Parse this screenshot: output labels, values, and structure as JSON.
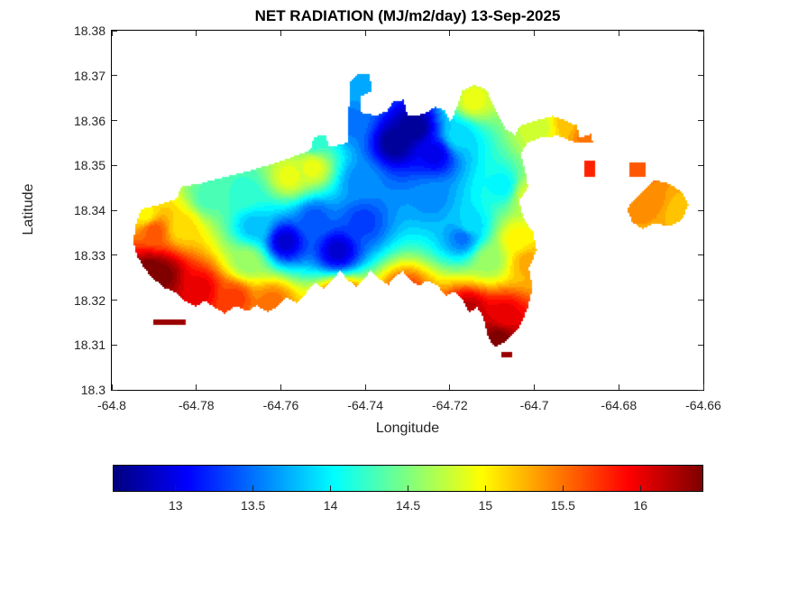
{
  "chart_data": {
    "type": "heatmap",
    "title": "NET RADIATION (MJ/m2/day) 13-Sep-2025",
    "date": "13-Sep-2025",
    "units": "MJ/m2/day",
    "xlabel": "Longitude",
    "ylabel": "Latitude",
    "xlim": [
      -64.8,
      -64.66
    ],
    "ylim": [
      18.3,
      18.38
    ],
    "x_tick_values": [
      -64.8,
      -64.78,
      -64.76,
      -64.74,
      -64.72,
      -64.7,
      -64.68,
      -64.66
    ],
    "x_tick_labels": [
      "-64.8",
      "-64.78",
      "-64.76",
      "-64.74",
      "-64.72",
      "-64.7",
      "-64.68",
      "-64.66"
    ],
    "y_tick_values": [
      18.3,
      18.31,
      18.32,
      18.33,
      18.34,
      18.35,
      18.36,
      18.37,
      18.38
    ],
    "y_tick_labels": [
      "18.3",
      "18.31",
      "18.32",
      "18.33",
      "18.34",
      "18.35",
      "18.36",
      "18.37",
      "18.38"
    ],
    "grid": false,
    "colorbar": {
      "orientation": "horizontal",
      "colormap": "jet",
      "vmin": 12.6,
      "vmax": 16.4,
      "tick_values": [
        13,
        13.5,
        14,
        14.5,
        15,
        15.5,
        16
      ],
      "tick_labels": [
        "13",
        "13.5",
        "14",
        "14.5",
        "15",
        "15.5",
        "16"
      ]
    },
    "levels_step": 0.1,
    "regions": [
      [
        [
          -64.7943,
          18.3366
        ],
        [
          -64.7932,
          18.3402
        ],
        [
          -64.7883,
          18.3414
        ],
        [
          -64.7845,
          18.3426
        ],
        [
          -64.7836,
          18.3452
        ],
        [
          -64.7789,
          18.346
        ],
        [
          -64.7734,
          18.3474
        ],
        [
          -64.7666,
          18.349
        ],
        [
          -64.7591,
          18.3512
        ],
        [
          -64.753,
          18.3534
        ],
        [
          -64.7521,
          18.3564
        ],
        [
          -64.7491,
          18.3568
        ],
        [
          -64.7489,
          18.354
        ],
        [
          -64.7443,
          18.355
        ],
        [
          -64.7436,
          18.3686
        ],
        [
          -64.7419,
          18.3702
        ],
        [
          -64.7389,
          18.3702
        ],
        [
          -64.7385,
          18.3666
        ],
        [
          -64.7411,
          18.3654
        ],
        [
          -64.7409,
          18.3618
        ],
        [
          -64.7374,
          18.361
        ],
        [
          -64.7347,
          18.3622
        ],
        [
          -64.7334,
          18.3642
        ],
        [
          -64.7309,
          18.3646
        ],
        [
          -64.73,
          18.361
        ],
        [
          -64.7262,
          18.3614
        ],
        [
          -64.7236,
          18.363
        ],
        [
          -64.7211,
          18.3622
        ],
        [
          -64.7198,
          18.3596
        ],
        [
          -64.7183,
          18.363
        ],
        [
          -64.717,
          18.3666
        ],
        [
          -64.7143,
          18.368
        ],
        [
          -64.7113,
          18.3668
        ],
        [
          -64.71,
          18.364
        ],
        [
          -64.7083,
          18.361
        ],
        [
          -64.7068,
          18.358
        ],
        [
          -64.7045,
          18.3568
        ],
        [
          -64.7034,
          18.3588
        ],
        [
          -64.6998,
          18.36
        ],
        [
          -64.6955,
          18.361
        ],
        [
          -64.6926,
          18.36
        ],
        [
          -64.6898,
          18.3588
        ],
        [
          -64.6894,
          18.3562
        ],
        [
          -64.6864,
          18.357
        ],
        [
          -64.6862,
          18.355
        ],
        [
          -64.69,
          18.355
        ],
        [
          -64.6943,
          18.3566
        ],
        [
          -64.6985,
          18.3562
        ],
        [
          -64.7017,
          18.355
        ],
        [
          -64.7032,
          18.3526
        ],
        [
          -64.7021,
          18.3486
        ],
        [
          -64.7015,
          18.345
        ],
        [
          -64.7036,
          18.3422
        ],
        [
          -64.7026,
          18.3382
        ],
        [
          -64.7002,
          18.335
        ],
        [
          -64.6994,
          18.331
        ],
        [
          -64.7013,
          18.3272
        ],
        [
          -64.7004,
          18.323
        ],
        [
          -64.7015,
          18.3182
        ],
        [
          -64.7036,
          18.314
        ],
        [
          -64.7066,
          18.3108
        ],
        [
          -64.7094,
          18.3094
        ],
        [
          -64.7111,
          18.3122
        ],
        [
          -64.7121,
          18.3162
        ],
        [
          -64.7136,
          18.3184
        ],
        [
          -64.7155,
          18.3172
        ],
        [
          -64.7172,
          18.3204
        ],
        [
          -64.7189,
          18.322
        ],
        [
          -64.721,
          18.3208
        ],
        [
          -64.7228,
          18.3232
        ],
        [
          -64.7253,
          18.3244
        ],
        [
          -64.7274,
          18.323
        ],
        [
          -64.7296,
          18.3248
        ],
        [
          -64.7311,
          18.3264
        ],
        [
          -64.733,
          18.3252
        ],
        [
          -64.7345,
          18.3234
        ],
        [
          -64.7368,
          18.3248
        ],
        [
          -64.7387,
          18.3266
        ],
        [
          -64.7404,
          18.3244
        ],
        [
          -64.7423,
          18.323
        ],
        [
          -64.7445,
          18.3248
        ],
        [
          -64.746,
          18.3266
        ],
        [
          -64.7477,
          18.3244
        ],
        [
          -64.7498,
          18.3226
        ],
        [
          -64.7519,
          18.3238
        ],
        [
          -64.754,
          18.3216
        ],
        [
          -64.7562,
          18.3194
        ],
        [
          -64.7587,
          18.3206
        ],
        [
          -64.761,
          18.3184
        ],
        [
          -64.7632,
          18.3174
        ],
        [
          -64.7657,
          18.3188
        ],
        [
          -64.768,
          18.3174
        ],
        [
          -64.7706,
          18.3188
        ],
        [
          -64.7732,
          18.317
        ],
        [
          -64.7757,
          18.3184
        ],
        [
          -64.7779,
          18.3198
        ],
        [
          -64.7802,
          18.3186
        ],
        [
          -64.7828,
          18.3198
        ],
        [
          -64.7851,
          18.3218
        ],
        [
          -64.7877,
          18.3228
        ],
        [
          -64.7902,
          18.3248
        ],
        [
          -64.7923,
          18.327
        ],
        [
          -64.794,
          18.3298
        ],
        [
          -64.7949,
          18.333
        ]
      ],
      [
        [
          -64.6883,
          18.351
        ],
        [
          -64.6857,
          18.351
        ],
        [
          -64.6857,
          18.3474
        ],
        [
          -64.6883,
          18.3474
        ]
      ],
      [
        [
          -64.6777,
          18.3506
        ],
        [
          -64.6738,
          18.3506
        ],
        [
          -64.6738,
          18.3474
        ],
        [
          -64.6777,
          18.3474
        ]
      ],
      [
        [
          -64.6772,
          18.3416
        ],
        [
          -64.6747,
          18.344
        ],
        [
          -64.6713,
          18.3468
        ],
        [
          -64.6679,
          18.3458
        ],
        [
          -64.6649,
          18.344
        ],
        [
          -64.6636,
          18.3412
        ],
        [
          -64.6649,
          18.338
        ],
        [
          -64.6679,
          18.3364
        ],
        [
          -64.6715,
          18.3372
        ],
        [
          -64.6743,
          18.3358
        ],
        [
          -64.6768,
          18.3374
        ],
        [
          -64.6781,
          18.3402
        ]
      ],
      [
        [
          -64.79,
          18.3158
        ],
        [
          -64.7826,
          18.3158
        ],
        [
          -64.7826,
          18.3146
        ],
        [
          -64.79,
          18.3146
        ]
      ],
      [
        [
          -64.708,
          18.3084
        ],
        [
          -64.7053,
          18.3084
        ],
        [
          -64.7053,
          18.3074
        ],
        [
          -64.708,
          18.3074
        ]
      ]
    ],
    "samples": [
      [
        -64.791,
        18.326,
        16.5
      ],
      [
        -64.788,
        18.3255,
        16.4
      ],
      [
        -64.786,
        18.315,
        16.3
      ],
      [
        -64.779,
        18.3225,
        16.0
      ],
      [
        -64.771,
        18.3205,
        15.7
      ],
      [
        -64.762,
        18.3195,
        15.5
      ],
      [
        -64.7835,
        18.336,
        15.1
      ],
      [
        -64.79,
        18.3355,
        15.6
      ],
      [
        -64.792,
        18.339,
        15.0
      ],
      [
        -64.777,
        18.343,
        14.3
      ],
      [
        -64.768,
        18.3285,
        14.6
      ],
      [
        -64.758,
        18.3475,
        14.9
      ],
      [
        -64.7525,
        18.3495,
        14.9
      ],
      [
        -64.7685,
        18.3435,
        14.2
      ],
      [
        -64.7665,
        18.3365,
        13.8
      ],
      [
        -64.759,
        18.333,
        12.9
      ],
      [
        -64.7465,
        18.331,
        12.9
      ],
      [
        -64.752,
        18.338,
        13.4
      ],
      [
        -64.7405,
        18.3375,
        13.3
      ],
      [
        -64.733,
        18.355,
        12.65
      ],
      [
        -64.7285,
        18.3585,
        12.65
      ],
      [
        -64.7235,
        18.3525,
        13.0
      ],
      [
        -64.741,
        18.3465,
        13.6
      ],
      [
        -64.724,
        18.3425,
        13.6
      ],
      [
        -64.7155,
        18.3365,
        13.9
      ],
      [
        -64.717,
        18.334,
        13.5
      ],
      [
        -64.7105,
        18.329,
        14.6
      ],
      [
        -64.704,
        18.3335,
        15.0
      ],
      [
        -64.7015,
        18.3285,
        15.3
      ],
      [
        -64.707,
        18.3165,
        16.0
      ],
      [
        -64.7085,
        18.3115,
        16.4
      ],
      [
        -64.7145,
        18.3645,
        14.9
      ],
      [
        -64.718,
        18.3565,
        13.9
      ],
      [
        -64.741,
        18.3675,
        13.7
      ],
      [
        -64.7435,
        18.3595,
        13.5
      ],
      [
        -64.752,
        18.3555,
        14.2
      ],
      [
        -64.6985,
        18.3585,
        14.8
      ],
      [
        -64.6925,
        18.3595,
        15.2
      ],
      [
        -64.6875,
        18.357,
        15.5
      ],
      [
        -64.687,
        18.349,
        15.8
      ],
      [
        -64.6758,
        18.349,
        15.6
      ],
      [
        -64.672,
        18.342,
        15.4
      ],
      [
        -64.666,
        18.34,
        15.2
      ],
      [
        -64.7304,
        18.3216,
        15.7
      ],
      [
        -64.7457,
        18.32,
        15.9
      ],
      [
        -64.7155,
        18.3175,
        16.2
      ],
      [
        -64.7075,
        18.3455,
        14.0
      ],
      [
        -64.7015,
        18.3435,
        14.8
      ]
    ]
  }
}
